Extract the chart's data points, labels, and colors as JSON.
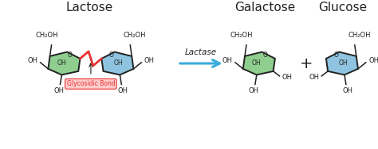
{
  "title_lactose": "Lactose",
  "title_galactose": "Galactose",
  "title_glucose": "Glucose",
  "label_lactase": "Lactase",
  "label_glycosidic": "Glycosidic Bond",
  "color_green_fill": "#8fce8f",
  "color_blue_fill": "#8fc4e0",
  "color_red_bond": "#e83030",
  "color_arrow": "#3aabda",
  "color_black": "#222222",
  "color_bg": "#ffffff",
  "ring_linewidth": 1.4,
  "font_title": 11,
  "font_label": 7.5,
  "font_small": 6.0
}
